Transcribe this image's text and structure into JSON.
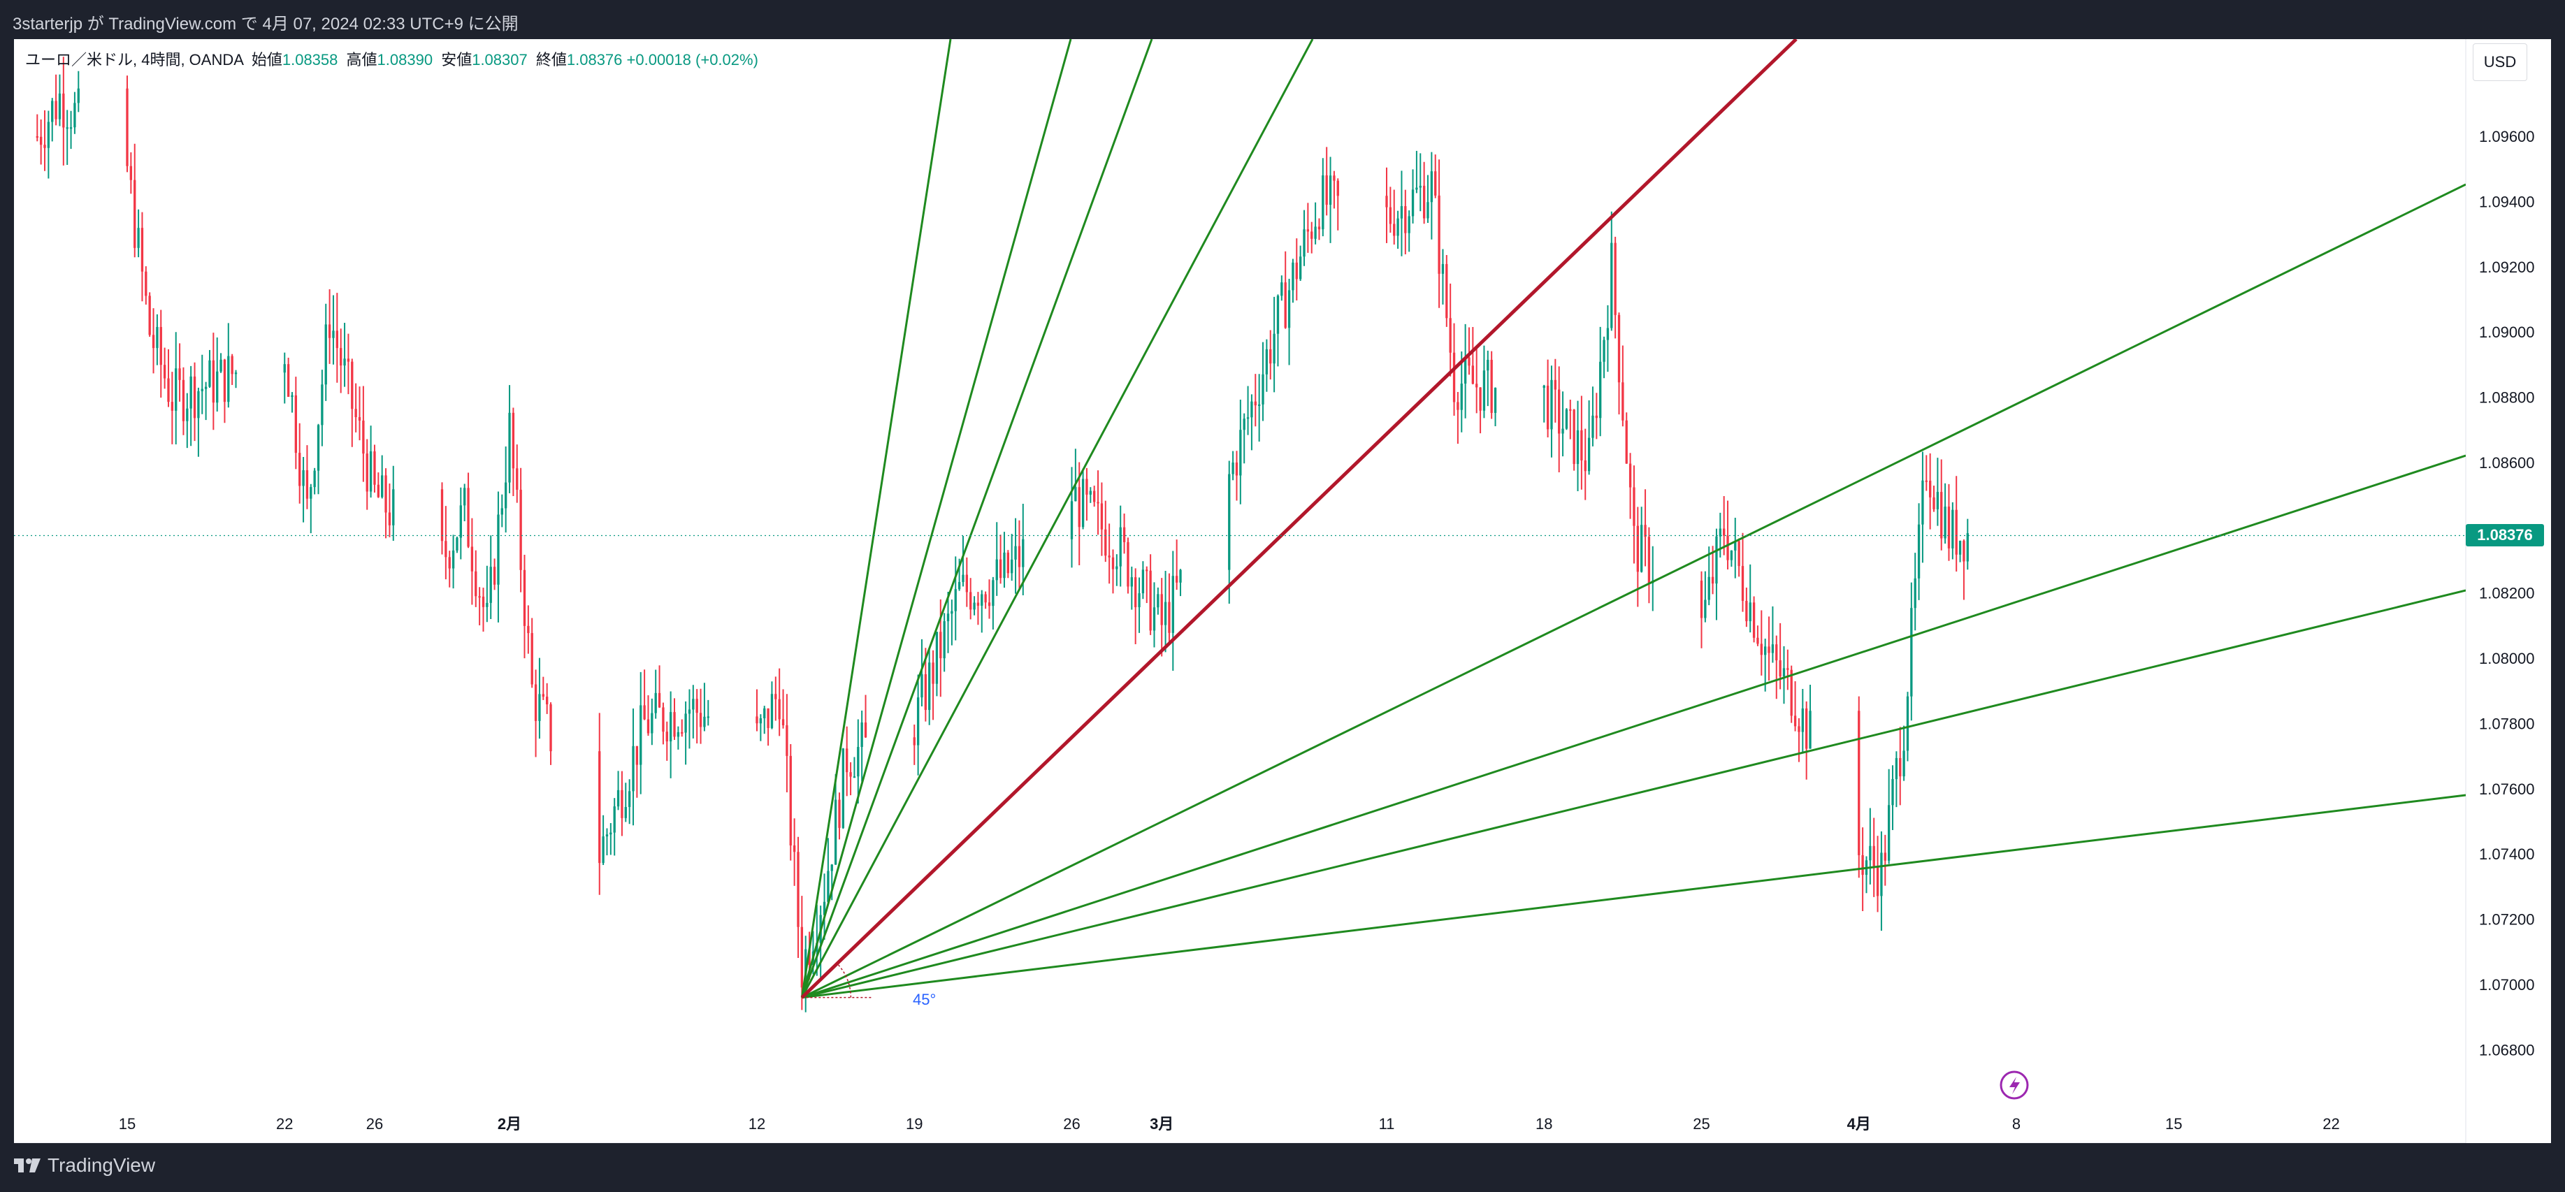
{
  "header": {
    "publish_text": "3starterjp が TradingView.com で 4月 07, 2024 02:33 UTC+9 に公開"
  },
  "legend": {
    "symbol": "ユーロ／米ドル, 4時間, OANDA",
    "open_label": "始値",
    "open": "1.08358",
    "high_label": "高値",
    "high": "1.08390",
    "low_label": "安値",
    "low": "1.08307",
    "close_label": "終値",
    "close": "1.08376",
    "change": "+0.00018 (+0.02%)"
  },
  "currency_button": "USD",
  "last_price_tag": "1.08376",
  "angle_label": "45°",
  "brand": "TradingView",
  "colors": {
    "up": "#089981",
    "down": "#f23645",
    "fan_lines": "#1f8a1f",
    "fan_main": "#b2172b",
    "last_price": "#089981",
    "lightning_badge": "#9c27b0"
  },
  "chart_data": {
    "type": "candlestick",
    "symbol": "EUR/USD",
    "interval": "4h",
    "y_ticks": [
      "1.09600",
      "1.09400",
      "1.09200",
      "1.09000",
      "1.08800",
      "1.08600",
      "1.08200",
      "1.08000",
      "1.07800",
      "1.07600",
      "1.07400",
      "1.07200",
      "1.07000",
      "1.06800"
    ],
    "x_ticks": [
      "15",
      "22",
      "26",
      "2月",
      "12",
      "19",
      "26",
      "3月",
      "11",
      "18",
      "25",
      "4月",
      "8",
      "15",
      "22"
    ],
    "ylim": [
      1.0665,
      1.098
    ],
    "last_close": 1.08376,
    "grid": false,
    "price_path": [
      {
        "date": "2024-01-11",
        "price": 1.096
      },
      {
        "date": "2024-01-12",
        "price": 1.0972
      },
      {
        "date": "2024-01-15",
        "price": 1.095
      },
      {
        "date": "2024-01-16",
        "price": 1.09
      },
      {
        "date": "2024-01-17",
        "price": 1.088
      },
      {
        "date": "2024-01-19",
        "price": 1.0885
      },
      {
        "date": "2024-01-22",
        "price": 1.0895
      },
      {
        "date": "2024-01-23",
        "price": 1.0845
      },
      {
        "date": "2024-01-24",
        "price": 1.0905
      },
      {
        "date": "2024-01-26",
        "price": 1.085
      },
      {
        "date": "2024-01-29",
        "price": 1.083
      },
      {
        "date": "2024-01-30",
        "price": 1.0845
      },
      {
        "date": "2024-01-31",
        "price": 1.081
      },
      {
        "date": "2024-02-01",
        "price": 1.087
      },
      {
        "date": "2024-02-02",
        "price": 1.079
      },
      {
        "date": "2024-02-05",
        "price": 1.074
      },
      {
        "date": "2024-02-07",
        "price": 1.078
      },
      {
        "date": "2024-02-09",
        "price": 1.0785
      },
      {
        "date": "2024-02-12",
        "price": 1.0775
      },
      {
        "date": "2024-02-13",
        "price": 1.079
      },
      {
        "date": "2024-02-14",
        "price": 1.0705
      },
      {
        "date": "2024-02-15",
        "price": 1.073
      },
      {
        "date": "2024-02-16",
        "price": 1.077
      },
      {
        "date": "2024-02-19",
        "price": 1.078
      },
      {
        "date": "2024-02-21",
        "price": 1.082
      },
      {
        "date": "2024-02-23",
        "price": 1.0825
      },
      {
        "date": "2024-02-26",
        "price": 1.085
      },
      {
        "date": "2024-02-28",
        "price": 1.0835
      },
      {
        "date": "2024-03-01",
        "price": 1.081
      },
      {
        "date": "2024-03-04",
        "price": 1.0855
      },
      {
        "date": "2024-03-06",
        "price": 1.09
      },
      {
        "date": "2024-03-08",
        "price": 1.094
      },
      {
        "date": "2024-03-11",
        "price": 1.0935
      },
      {
        "date": "2024-03-13",
        "price": 1.0945
      },
      {
        "date": "2024-03-14",
        "price": 1.0885
      },
      {
        "date": "2024-03-18",
        "price": 1.088
      },
      {
        "date": "2024-03-20",
        "price": 1.086
      },
      {
        "date": "2024-03-21",
        "price": 1.092
      },
      {
        "date": "2024-03-22",
        "price": 1.0835
      },
      {
        "date": "2024-03-25",
        "price": 1.081
      },
      {
        "date": "2024-03-26",
        "price": 1.084
      },
      {
        "date": "2024-03-28",
        "price": 1.08
      },
      {
        "date": "2024-03-29",
        "price": 1.079
      },
      {
        "date": "2024-04-01",
        "price": 1.074
      },
      {
        "date": "2024-04-02",
        "price": 1.0735
      },
      {
        "date": "2024-04-03",
        "price": 1.078
      },
      {
        "date": "2024-04-04",
        "price": 1.086
      },
      {
        "date": "2024-04-05",
        "price": 1.0838
      }
    ],
    "gann_fan": {
      "color": "#1f8a1f",
      "main_color": "#b2172b",
      "angle_label": "45°"
    }
  }
}
